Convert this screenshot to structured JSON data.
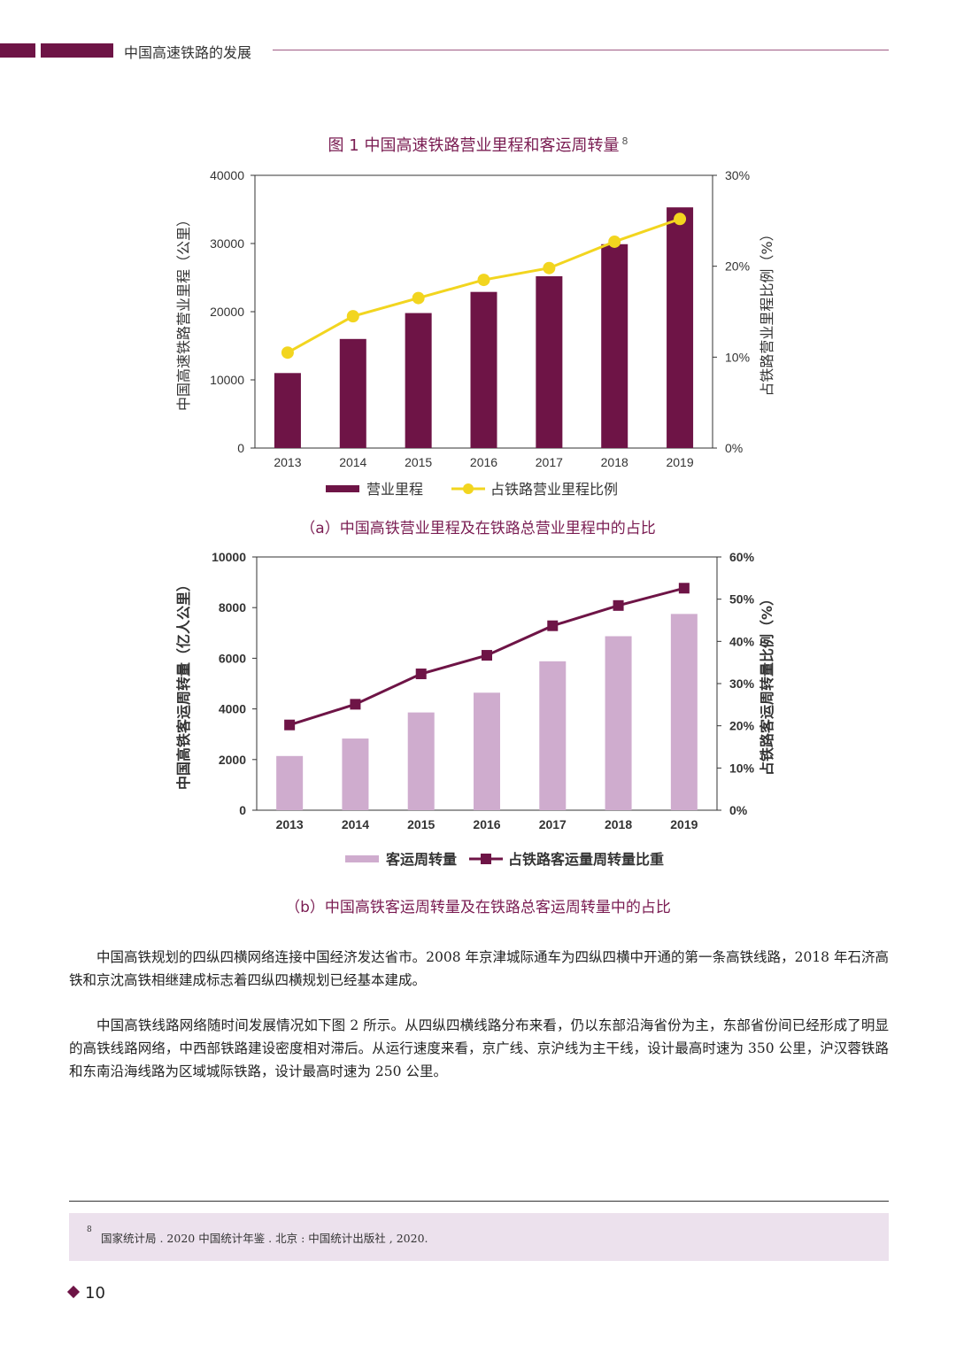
{
  "header": {
    "title": "中国高速铁路的发展"
  },
  "figure": {
    "title": "图 1  中国高速铁路营业里程和客运周转量",
    "footnote_ref": "8"
  },
  "chart_data": [
    {
      "type": "bar",
      "categories": [
        "2013",
        "2014",
        "2015",
        "2016",
        "2017",
        "2018",
        "2019"
      ],
      "series": [
        {
          "name": "营业里程",
          "type": "bar",
          "axis": "left",
          "values": [
            11000,
            16000,
            19800,
            22900,
            25200,
            29900,
            35300
          ],
          "color": "#6e1446"
        },
        {
          "name": "占铁路营业里程比例",
          "type": "line",
          "axis": "right",
          "values": [
            10.5,
            14.5,
            16.5,
            18.5,
            19.8,
            22.7,
            25.2
          ],
          "color": "#f2d51f"
        }
      ],
      "ylabel": "中国高速铁路营业里程（公里）",
      "ylabel_right": "占铁路营业里程比例（%）",
      "ylim": [
        0,
        40000
      ],
      "ylim_right": [
        0,
        30
      ],
      "yticks": [
        "0",
        "10000",
        "20000",
        "30000",
        "40000"
      ],
      "yticks_right": [
        "0%",
        "10%",
        "20%",
        "30%"
      ],
      "legend_position": "bottom",
      "caption": "（a）中国高铁营业里程及在铁路总营业里程中的占比"
    },
    {
      "type": "bar",
      "categories": [
        "2013",
        "2014",
        "2015",
        "2016",
        "2017",
        "2018",
        "2019"
      ],
      "series": [
        {
          "name": "客运周转量",
          "type": "bar",
          "axis": "left",
          "values": [
            2140,
            2830,
            3860,
            4640,
            5880,
            6870,
            7750
          ],
          "color": "#cfacce"
        },
        {
          "name": "占铁路客运量周转量比重",
          "type": "line",
          "axis": "right",
          "values": [
            20.2,
            25.1,
            32.3,
            36.7,
            43.7,
            48.5,
            52.6
          ],
          "color": "#6e1446"
        }
      ],
      "ylabel": "中国高铁客运周转量（亿人公里）",
      "ylabel_right": "占铁路客运周转量比例（%）",
      "ylim": [
        0,
        10000
      ],
      "ylim_right": [
        0,
        60
      ],
      "yticks": [
        "0",
        "2000",
        "4000",
        "6000",
        "8000",
        "10000"
      ],
      "yticks_right": [
        "0%",
        "10%",
        "20%",
        "30%",
        "40%",
        "50%",
        "60%"
      ],
      "legend_position": "bottom",
      "caption": "（b）中国高铁客运周转量及在铁路总客运周转量中的占比"
    }
  ],
  "body": {
    "p1": "中国高铁规划的四纵四横网络连接中国经济发达省市。2008 年京津城际通车为四纵四横中开通的第一条高铁线路，2018 年石济高铁和京沈高铁相继建成标志着四纵四横规划已经基本建成。",
    "p2": "中国高铁线路网络随时间发展情况如下图 2 所示。从四纵四横线路分布来看，仍以东部沿海省份为主，东部省份间已经形成了明显的高铁线路网络，中西部铁路建设密度相对滞后。从运行速度来看，京广线、京沪线为主干线，设计最高时速为 350 公里，沪汉蓉铁路和东南沿海线路为区域城际铁路，设计最高时速为 250 公里。"
  },
  "footnote": {
    "mark": "8",
    "text": "国家统计局 . 2020 中国统计年鉴 . 北京 : 中国统计出版社 , 2020."
  },
  "page_number": "10"
}
